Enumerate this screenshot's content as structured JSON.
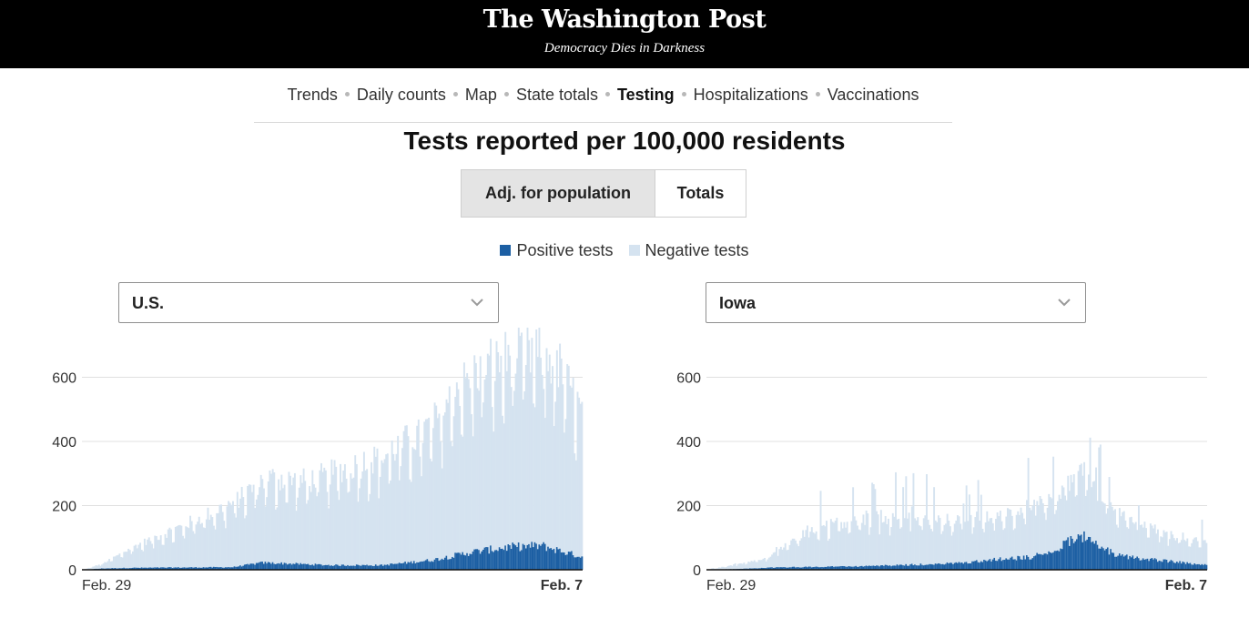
{
  "masthead": {
    "logo": "The Washington Post",
    "tagline": "Democracy Dies in Darkness"
  },
  "nav": {
    "items": [
      "Trends",
      "Daily counts",
      "Map",
      "State totals",
      "Testing",
      "Hospitalizations",
      "Vaccinations"
    ],
    "active": "Testing"
  },
  "title": "Tests reported per 100,000 residents",
  "toggle": {
    "adjusted_label": "Adj. for population",
    "totals_label": "Totals",
    "selected": "Adj. for population"
  },
  "legend": {
    "positive": {
      "label": "Positive tests",
      "color": "#1c5fa3"
    },
    "negative": {
      "label": "Negative tests",
      "color": "#d5e3f0"
    }
  },
  "selectors": {
    "left": "U.S.",
    "right": "Iowa"
  },
  "chart_data": [
    {
      "type": "bar",
      "stacked": true,
      "region": "U.S.",
      "x_start_label": "Feb. 29",
      "x_end_label": "Feb. 7",
      "ylim": [
        0,
        700
      ],
      "yticks": [
        0,
        200,
        400,
        600
      ],
      "grid": true,
      "series": [
        {
          "name": "Positive tests",
          "color": "#1c5fa3",
          "key_points": [
            [
              0,
              0
            ],
            [
              0.04,
              4
            ],
            [
              0.1,
              6
            ],
            [
              0.3,
              8
            ],
            [
              0.36,
              22
            ],
            [
              0.5,
              14
            ],
            [
              0.6,
              14
            ],
            [
              0.7,
              30
            ],
            [
              0.78,
              55
            ],
            [
              0.85,
              70
            ],
            [
              0.92,
              75
            ],
            [
              1,
              40
            ]
          ]
        },
        {
          "name": "Negative tests",
          "color": "#d5e3f0",
          "key_points": [
            [
              0,
              0
            ],
            [
              0.04,
              15
            ],
            [
              0.1,
              65
            ],
            [
              0.2,
              130
            ],
            [
              0.3,
              200
            ],
            [
              0.37,
              265
            ],
            [
              0.45,
              260
            ],
            [
              0.52,
              300
            ],
            [
              0.6,
              340
            ],
            [
              0.7,
              420
            ],
            [
              0.75,
              520
            ],
            [
              0.8,
              570
            ],
            [
              0.85,
              590
            ],
            [
              0.9,
              600
            ],
            [
              0.95,
              580
            ],
            [
              1,
              450
            ]
          ]
        }
      ]
    },
    {
      "type": "bar",
      "stacked": true,
      "region": "Iowa",
      "x_start_label": "Feb. 29",
      "x_end_label": "Feb. 7",
      "ylim": [
        0,
        700
      ],
      "yticks": [
        0,
        200,
        400,
        600
      ],
      "grid": true,
      "series": [
        {
          "name": "Positive tests",
          "color": "#1c5fa3",
          "key_points": [
            [
              0,
              0
            ],
            [
              0.05,
              2
            ],
            [
              0.15,
              8
            ],
            [
              0.3,
              10
            ],
            [
              0.5,
              20
            ],
            [
              0.55,
              28
            ],
            [
              0.65,
              40
            ],
            [
              0.7,
              60
            ],
            [
              0.74,
              110
            ],
            [
              0.77,
              90
            ],
            [
              0.82,
              45
            ],
            [
              0.9,
              30
            ],
            [
              1,
              15
            ]
          ]
        },
        {
          "name": "Negative tests",
          "color": "#d5e3f0",
          "key_points": [
            [
              0,
              0
            ],
            [
              0.05,
              12
            ],
            [
              0.12,
              30
            ],
            [
              0.2,
              110
            ],
            [
              0.3,
              150
            ],
            [
              0.4,
              150
            ],
            [
              0.5,
              130
            ],
            [
              0.6,
              140
            ],
            [
              0.7,
              170
            ],
            [
              0.75,
              210
            ],
            [
              0.8,
              150
            ],
            [
              0.9,
              90
            ],
            [
              1,
              70
            ]
          ]
        }
      ]
    }
  ]
}
